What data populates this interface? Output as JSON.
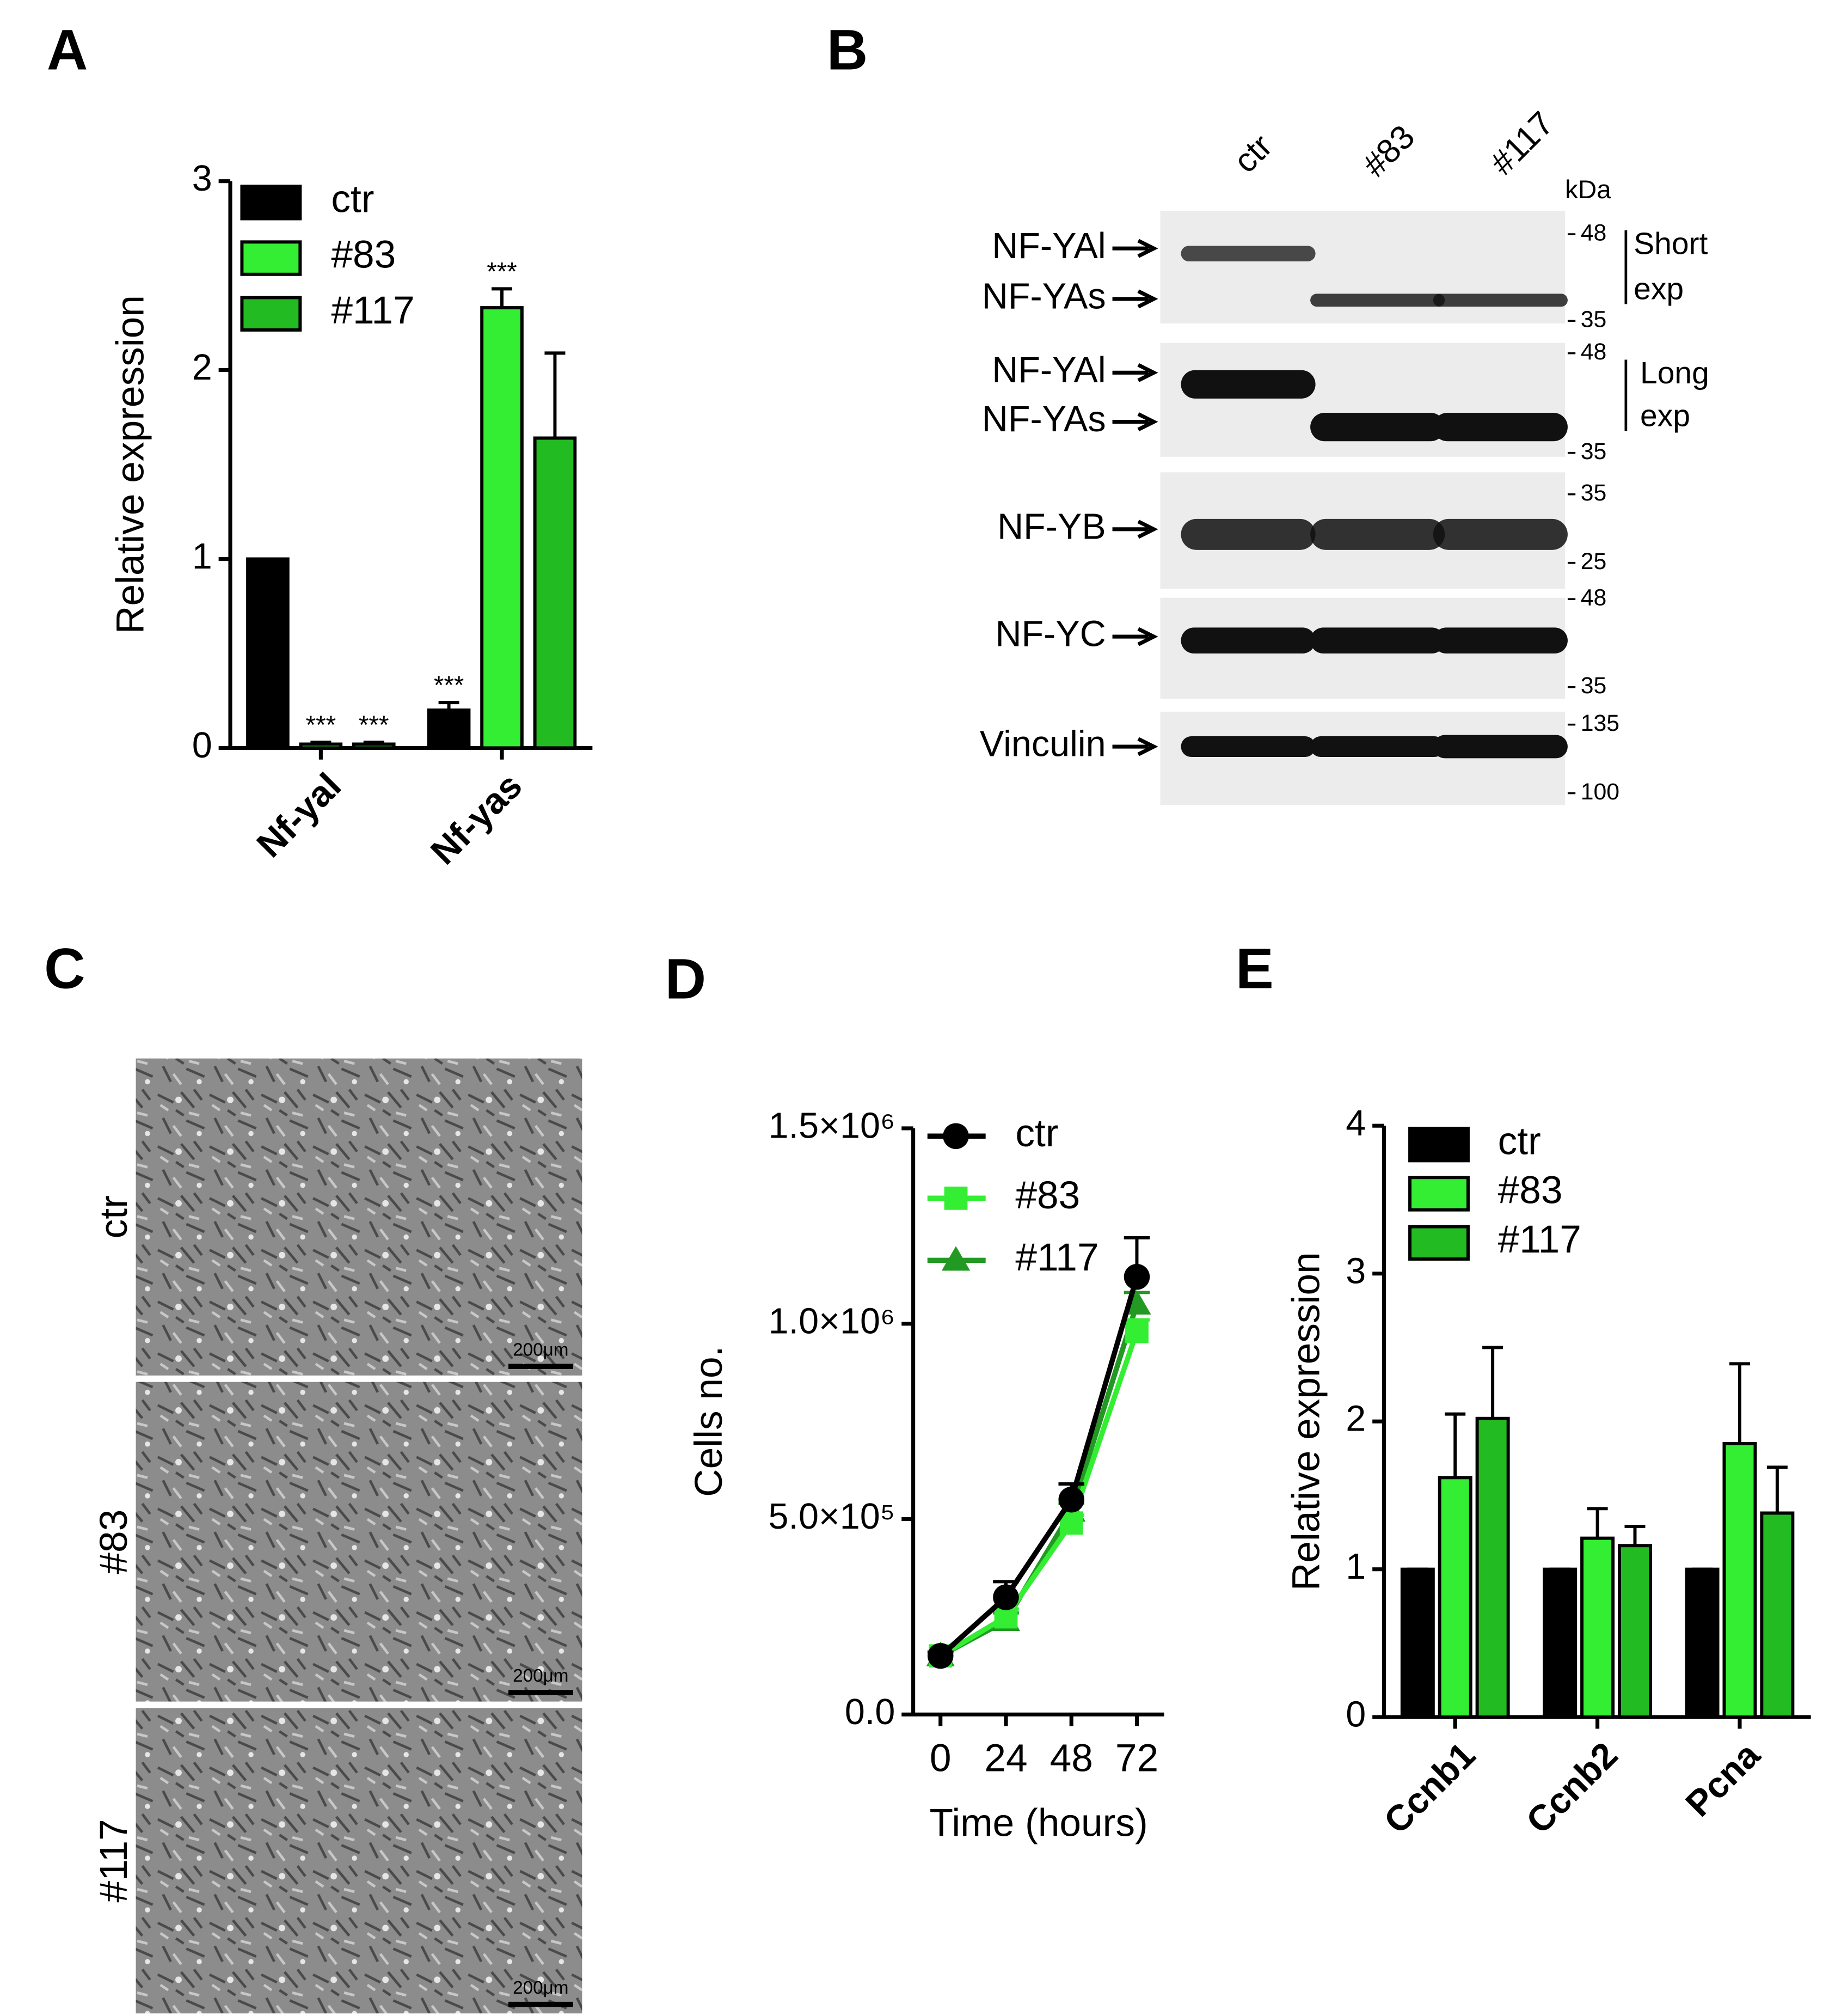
{
  "panel_labels": [
    "A",
    "B",
    "C",
    "D",
    "E"
  ],
  "chart_data": [
    {
      "type": "bar",
      "ylabel": "Relative expression",
      "categories": [
        "Nf-yal",
        "Nf-yas"
      ],
      "series": [
        {
          "name": "ctr",
          "color": "#000000",
          "values": [
            1,
            0.2
          ],
          "errors": [
            0,
            0.04
          ],
          "annotations": [
            null,
            "***"
          ]
        },
        {
          "name": "#83",
          "color": "#33ee33",
          "values": [
            0.02,
            2.33
          ],
          "errors": [
            0.01,
            0.1
          ],
          "annotations": [
            "***",
            "***"
          ]
        },
        {
          "name": "#117",
          "color": "#22bb22",
          "values": [
            0.02,
            1.64
          ],
          "errors": [
            0.01,
            0.45
          ],
          "annotations": [
            "***",
            null
          ]
        }
      ],
      "ylim": [
        0,
        3
      ],
      "yticks": [
        0,
        1,
        2,
        3
      ],
      "legend": "upper left"
    },
    {
      "type": "line",
      "xlabel": "Time (hours)",
      "ylabel": "Cells no.",
      "x": [
        0,
        24,
        48,
        72
      ],
      "series": [
        {
          "name": "ctr",
          "color": "#000000",
          "marker": "circle",
          "values": [
            150000,
            300000,
            550000,
            1120000
          ],
          "errors": [
            10000,
            40000,
            40000,
            100000
          ]
        },
        {
          "name": "#83",
          "color": "#33ee33",
          "marker": "square",
          "values": [
            150000,
            250000,
            490000,
            980000
          ],
          "errors": [
            10000,
            20000,
            20000,
            30000
          ]
        },
        {
          "name": "#117",
          "color": "#229922",
          "marker": "triangle",
          "values": [
            150000,
            240000,
            520000,
            1050000
          ],
          "errors": [
            10000,
            20000,
            20000,
            30000
          ]
        }
      ],
      "xlim": [
        -10,
        82
      ],
      "xticks": [
        0,
        24,
        48,
        72
      ],
      "ylim": [
        0,
        1500000
      ],
      "yticks": [
        {
          "value": 0,
          "label": "0.0"
        },
        {
          "value": 500000,
          "label": "5.0×10⁵"
        },
        {
          "value": 1000000,
          "label": "1.0×10⁶"
        },
        {
          "value": 1500000,
          "label": "1.5×10⁶"
        }
      ],
      "legend": "upper left"
    },
    {
      "type": "bar",
      "ylabel": "Relative expression",
      "categories": [
        "Ccnb1",
        "Ccnb2",
        "Pcna"
      ],
      "series": [
        {
          "name": "ctr",
          "color": "#000000",
          "values": [
            1,
            1,
            1
          ],
          "errors": [
            0,
            0,
            0
          ]
        },
        {
          "name": "#83",
          "color": "#33ee33",
          "values": [
            1.62,
            1.21,
            1.85
          ],
          "errors": [
            0.43,
            0.2,
            0.54
          ]
        },
        {
          "name": "#117",
          "color": "#22bb22",
          "values": [
            2.02,
            1.16,
            1.38
          ],
          "errors": [
            0.48,
            0.13,
            0.31
          ]
        }
      ],
      "ylim": [
        0,
        4
      ],
      "yticks": [
        0,
        1,
        2,
        3,
        4
      ],
      "legend": "upper left"
    }
  ],
  "blot": {
    "lanes": [
      "ctr",
      "#83",
      "#117"
    ],
    "unit": "kDa",
    "strips": [
      {
        "labels": [
          "NF-YAl",
          "NF-YAs"
        ],
        "markers": [
          48,
          35
        ],
        "note": [
          "Short",
          "exp"
        ]
      },
      {
        "labels": [
          "NF-YAl",
          "NF-YAs"
        ],
        "markers": [
          48,
          35
        ],
        "note": [
          "Long",
          "exp"
        ]
      },
      {
        "labels": [
          "NF-YB"
        ],
        "markers": [
          35,
          25
        ]
      },
      {
        "labels": [
          "NF-YC"
        ],
        "markers": [
          48,
          35
        ]
      },
      {
        "labels": [
          "Vinculin"
        ],
        "markers": [
          135,
          100
        ]
      }
    ]
  },
  "micrographs": {
    "rows": [
      "ctr",
      "#83",
      "#117"
    ],
    "scale_bar": "200μm"
  }
}
